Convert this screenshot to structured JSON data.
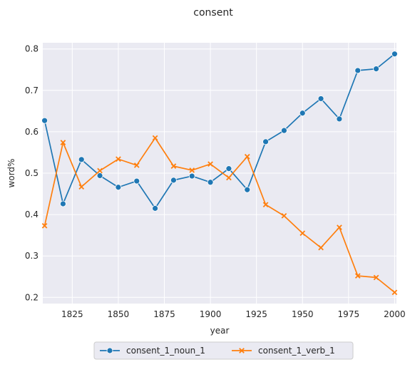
{
  "chart_data": {
    "type": "line",
    "title": "consent",
    "xlabel": "year",
    "ylabel": "word%",
    "xlim": [
      1809,
      2001
    ],
    "ylim": [
      0.185,
      0.815
    ],
    "xticks": [
      1825,
      1850,
      1875,
      1900,
      1925,
      1950,
      1975,
      2000
    ],
    "yticks": [
      0.2,
      0.3,
      0.4,
      0.5,
      0.6,
      0.7,
      0.8
    ],
    "x": [
      1810,
      1820,
      1830,
      1840,
      1850,
      1860,
      1870,
      1880,
      1890,
      1900,
      1910,
      1920,
      1930,
      1940,
      1950,
      1960,
      1970,
      1980,
      1990,
      2000
    ],
    "grid": true,
    "legend_position": "bottom-center",
    "background": "#eaeaf2",
    "series": [
      {
        "name": "consent_1_noun_1",
        "color": "#1f77b4",
        "marker": "circle",
        "values": [
          0.627,
          0.426,
          0.533,
          0.494,
          0.466,
          0.481,
          0.415,
          0.483,
          0.493,
          0.478,
          0.511,
          0.46,
          0.576,
          0.603,
          0.645,
          0.68,
          0.631,
          0.748,
          0.752,
          0.788
        ]
      },
      {
        "name": "consent_1_verb_1",
        "color": "#ff7f0e",
        "marker": "x",
        "values": [
          0.373,
          0.574,
          0.467,
          0.506,
          0.534,
          0.519,
          0.585,
          0.517,
          0.507,
          0.522,
          0.489,
          0.54,
          0.424,
          0.397,
          0.355,
          0.32,
          0.369,
          0.252,
          0.248,
          0.212
        ]
      }
    ]
  }
}
